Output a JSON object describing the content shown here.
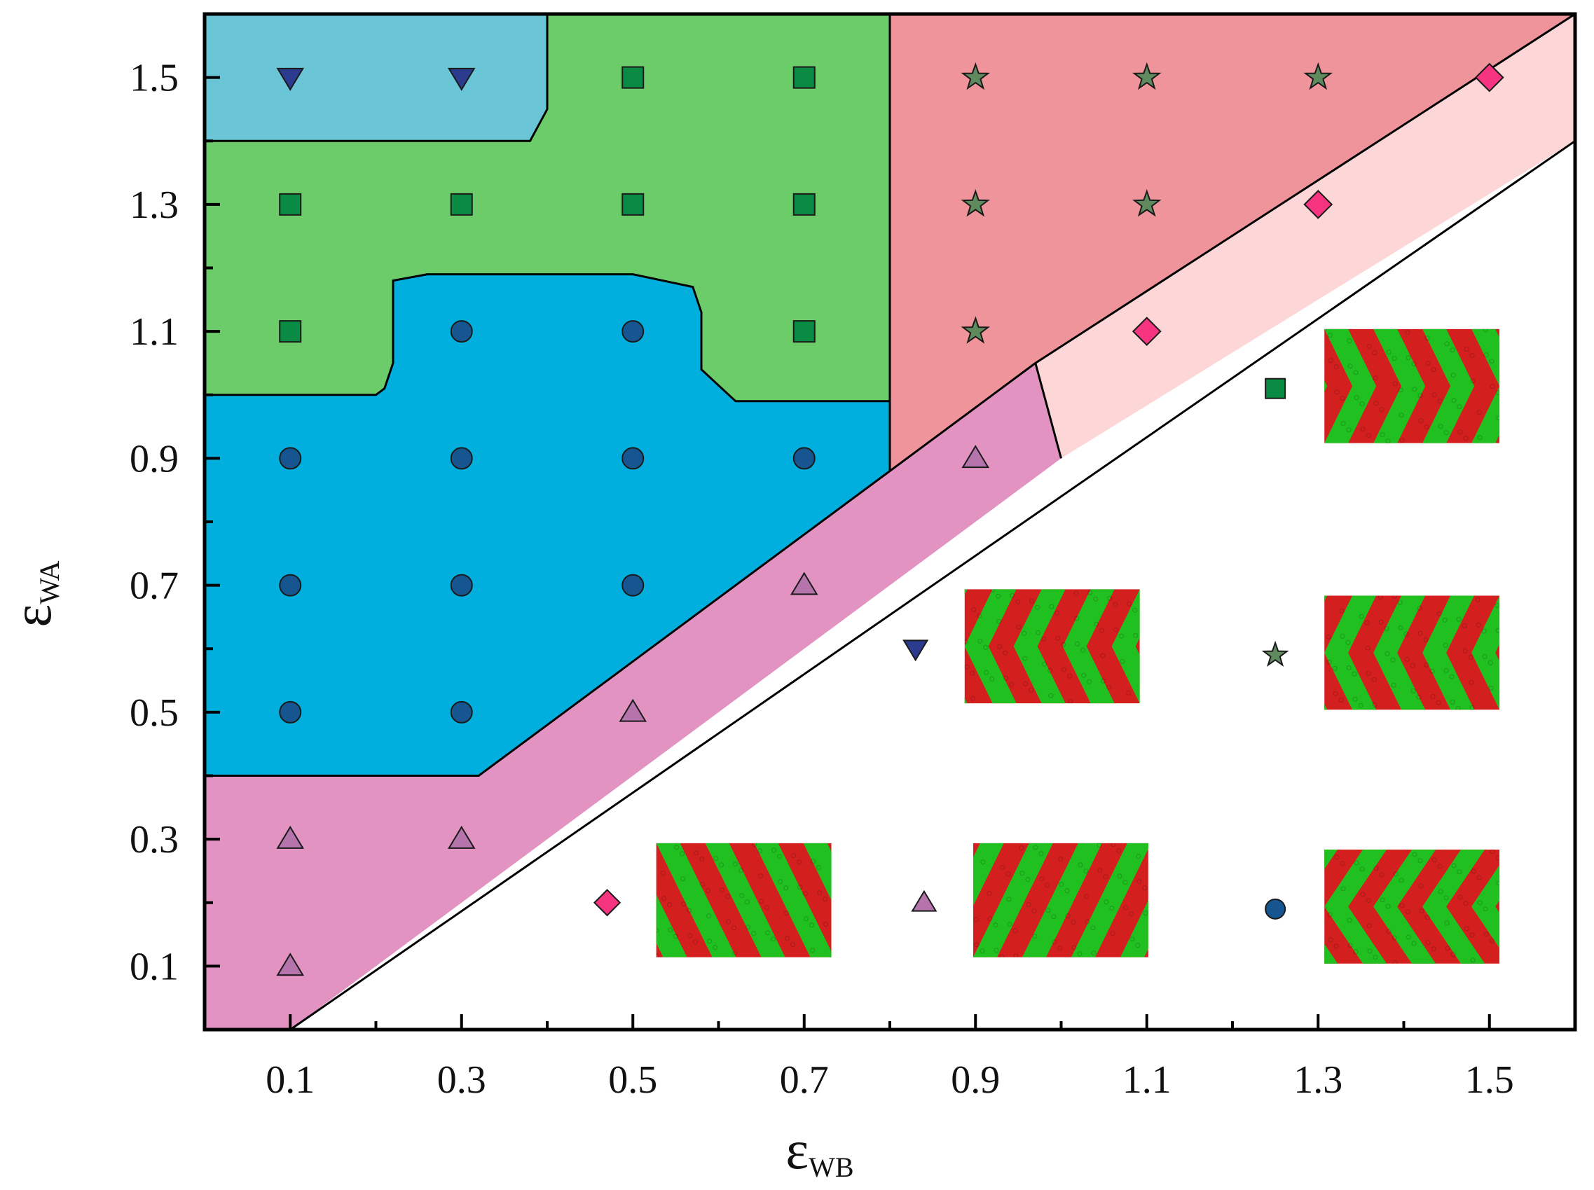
{
  "chart_data": {
    "type": "scatter",
    "title": "",
    "xlabel_symbol": "ε",
    "xlabel_sub": "WB",
    "ylabel_symbol": "ε",
    "ylabel_sub": "WA",
    "xlim": [
      0.0,
      1.6
    ],
    "ylim": [
      0.0,
      1.6
    ],
    "xticks": [
      "0.1",
      "0.3",
      "0.5",
      "0.7",
      "0.9",
      "1.1",
      "1.3",
      "1.5"
    ],
    "yticks": [
      "0.1",
      "0.3",
      "0.5",
      "0.7",
      "0.9",
      "1.1",
      "1.3",
      "1.5"
    ],
    "grid": false,
    "phase_regions": [
      {
        "color": "#6ac6d6",
        "polygon": [
          [
            0,
            1.4
          ],
          [
            0.38,
            1.4
          ],
          [
            0.4,
            1.45
          ],
          [
            0.4,
            1.6
          ],
          [
            0,
            1.6
          ]
        ]
      },
      {
        "color": "#6ccc6a",
        "polygon": [
          [
            0,
            1.0
          ],
          [
            0.2,
            1.0
          ],
          [
            0.21,
            1.01
          ],
          [
            0.22,
            1.05
          ],
          [
            0.22,
            1.18
          ],
          [
            0.26,
            1.19
          ],
          [
            0.5,
            1.19
          ],
          [
            0.57,
            1.17
          ],
          [
            0.58,
            1.13
          ],
          [
            0.58,
            1.04
          ],
          [
            0.62,
            0.99
          ],
          [
            0.8,
            0.99
          ],
          [
            0.8,
            1.6
          ],
          [
            0.4,
            1.6
          ],
          [
            0.4,
            1.45
          ],
          [
            0.38,
            1.4
          ],
          [
            0,
            1.4
          ]
        ]
      },
      {
        "color": "#00afdd",
        "polygon": [
          [
            0,
            0.4
          ],
          [
            0.32,
            0.4
          ],
          [
            0.8,
            0.88
          ],
          [
            0.8,
            0.99
          ],
          [
            0.62,
            0.99
          ],
          [
            0.58,
            1.04
          ],
          [
            0.58,
            1.13
          ],
          [
            0.57,
            1.17
          ],
          [
            0.5,
            1.19
          ],
          [
            0.26,
            1.19
          ],
          [
            0.22,
            1.18
          ],
          [
            0.22,
            1.05
          ],
          [
            0.21,
            1.01
          ],
          [
            0.2,
            1.0
          ],
          [
            0,
            1.0
          ]
        ]
      },
      {
        "color": "#ee949a",
        "polygon": [
          [
            0.8,
            0.88
          ],
          [
            0.97,
            1.05
          ],
          [
            1.6,
            1.6
          ],
          [
            0.8,
            1.6
          ]
        ]
      },
      {
        "color": "#fdd6d7",
        "polygon": [
          [
            0.97,
            1.05
          ],
          [
            1.0,
            0.9
          ],
          [
            1.6,
            1.4
          ],
          [
            1.6,
            1.6
          ]
        ]
      },
      {
        "color": "#e293c2",
        "polygon": [
          [
            0,
            0
          ],
          [
            0.1,
            0
          ],
          [
            1.0,
            0.9
          ],
          [
            0.97,
            1.05
          ],
          [
            0.8,
            0.88
          ],
          [
            0.32,
            0.4
          ],
          [
            0,
            0.4
          ]
        ]
      }
    ],
    "series": [
      {
        "marker": "triangle-down",
        "color": "#2b3b8e",
        "points": [
          [
            0.1,
            1.5
          ],
          [
            0.3,
            1.5
          ]
        ]
      },
      {
        "marker": "square",
        "color": "#0a8b43",
        "points": [
          [
            0.5,
            1.5
          ],
          [
            0.7,
            1.5
          ],
          [
            0.1,
            1.3
          ],
          [
            0.3,
            1.3
          ],
          [
            0.5,
            1.3
          ],
          [
            0.7,
            1.3
          ],
          [
            0.1,
            1.1
          ],
          [
            0.7,
            1.1
          ]
        ]
      },
      {
        "marker": "circle",
        "color": "#16558f",
        "points": [
          [
            0.3,
            1.1
          ],
          [
            0.5,
            1.1
          ],
          [
            0.1,
            0.9
          ],
          [
            0.3,
            0.9
          ],
          [
            0.5,
            0.9
          ],
          [
            0.7,
            0.9
          ],
          [
            0.1,
            0.7
          ],
          [
            0.3,
            0.7
          ],
          [
            0.5,
            0.7
          ],
          [
            0.1,
            0.5
          ],
          [
            0.3,
            0.5
          ]
        ]
      },
      {
        "marker": "star",
        "color": "#5f8a5e",
        "points": [
          [
            0.9,
            1.5
          ],
          [
            1.1,
            1.5
          ],
          [
            1.3,
            1.5
          ],
          [
            0.9,
            1.3
          ],
          [
            1.1,
            1.3
          ],
          [
            0.9,
            1.1
          ]
        ]
      },
      {
        "marker": "diamond",
        "color": "#f7347f",
        "points": [
          [
            1.5,
            1.5
          ],
          [
            1.3,
            1.3
          ],
          [
            1.1,
            1.1
          ]
        ]
      },
      {
        "marker": "triangle-up",
        "color": "#b574ab",
        "points": [
          [
            0.9,
            0.9
          ],
          [
            0.7,
            0.7
          ],
          [
            0.5,
            0.5
          ],
          [
            0.3,
            0.3
          ],
          [
            0.1,
            0.3
          ],
          [
            0.1,
            0.1
          ]
        ]
      }
    ],
    "legend_insets": [
      {
        "marker": "square",
        "color": "#0a8b43",
        "pattern": "chevron-right",
        "x": 1.25,
        "y": 1.01
      },
      {
        "marker": "triangle-down",
        "color": "#2b3b8e",
        "pattern": "chevron-left",
        "x": 0.83,
        "y": 0.6
      },
      {
        "marker": "star",
        "color": "#5f8a5e",
        "pattern": "chevron-left",
        "x": 1.25,
        "y": 0.59
      },
      {
        "marker": "diamond",
        "color": "#f7347f",
        "pattern": "diagonal-down",
        "x": 0.47,
        "y": 0.2
      },
      {
        "marker": "triangle-up",
        "color": "#b574ab",
        "pattern": "diagonal-up",
        "x": 0.84,
        "y": 0.2
      },
      {
        "marker": "circle",
        "color": "#16558f",
        "pattern": "chevron-left-wide",
        "x": 1.25,
        "y": 0.19
      }
    ],
    "stripe_colors": [
      "#d41f1f",
      "#21c021"
    ]
  }
}
